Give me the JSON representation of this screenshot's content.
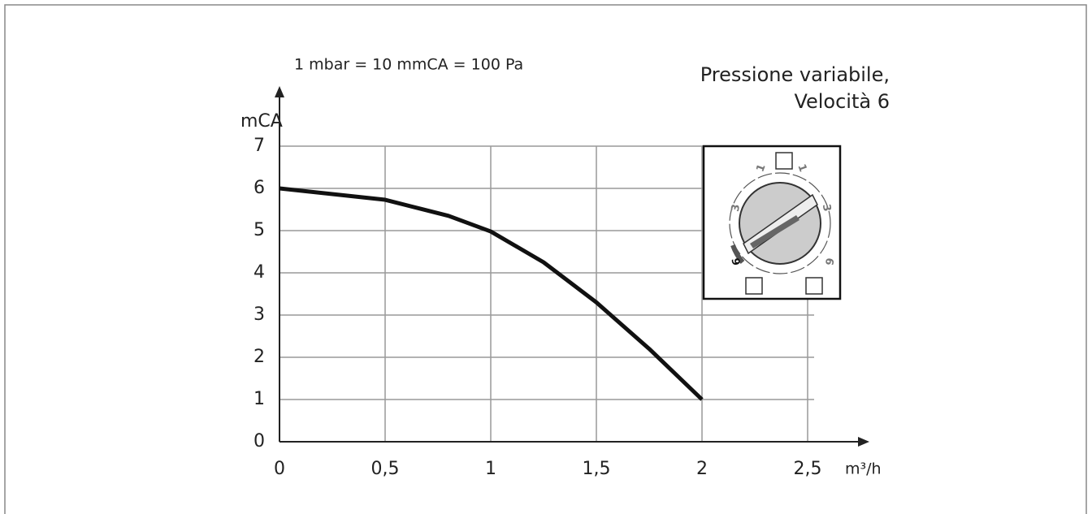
{
  "chart_data": {
    "type": "line",
    "title": "Pressione variabile,",
    "subtitle": "Velocità 6",
    "annotation": "1 mbar = 10 mmCA = 100 Pa",
    "y_label": "mCA",
    "x_label": "m³/h",
    "x": [
      0,
      0.5,
      0.8,
      1,
      1.25,
      1.5,
      1.75,
      2
    ],
    "values": [
      6,
      5.73,
      5.35,
      4.98,
      4.25,
      3.3,
      2.2,
      1.0
    ],
    "color": "#111111",
    "xlim": [
      0,
      2.5
    ],
    "ylim": [
      0,
      7
    ],
    "xticks": [
      0,
      {
        "value": 0.5,
        "label": "0,5"
      },
      1,
      {
        "value": 1.5,
        "label": "1,5"
      },
      2,
      {
        "value": 2.5,
        "label": "2,5"
      }
    ],
    "yticks": [
      0,
      1,
      2,
      3,
      4,
      5,
      6,
      7
    ],
    "grid": true
  },
  "dial_labels": [
    "1",
    "1",
    "3",
    "3",
    "6",
    "6"
  ]
}
